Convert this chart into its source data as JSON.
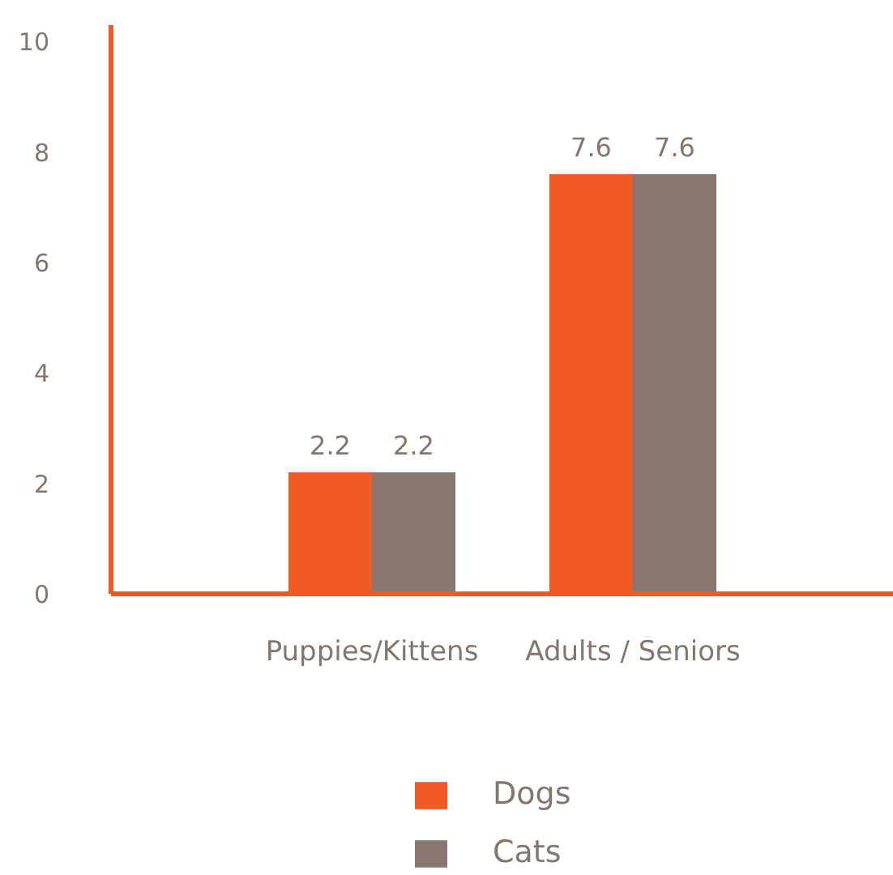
{
  "chart_data": {
    "type": "bar",
    "categories": [
      "Puppies/Kittens",
      "Adults / Seniors"
    ],
    "series": [
      {
        "name": "Dogs",
        "color": "#f15a22",
        "values": [
          2.2,
          7.6
        ]
      },
      {
        "name": "Cats",
        "color": "#87776e",
        "values": [
          2.2,
          7.6
        ]
      }
    ],
    "ylim": [
      0,
      10.3
    ],
    "yticks": [
      0,
      2,
      4,
      6,
      8,
      10
    ],
    "grid": false,
    "legend": "bottom",
    "data_labels": true
  }
}
